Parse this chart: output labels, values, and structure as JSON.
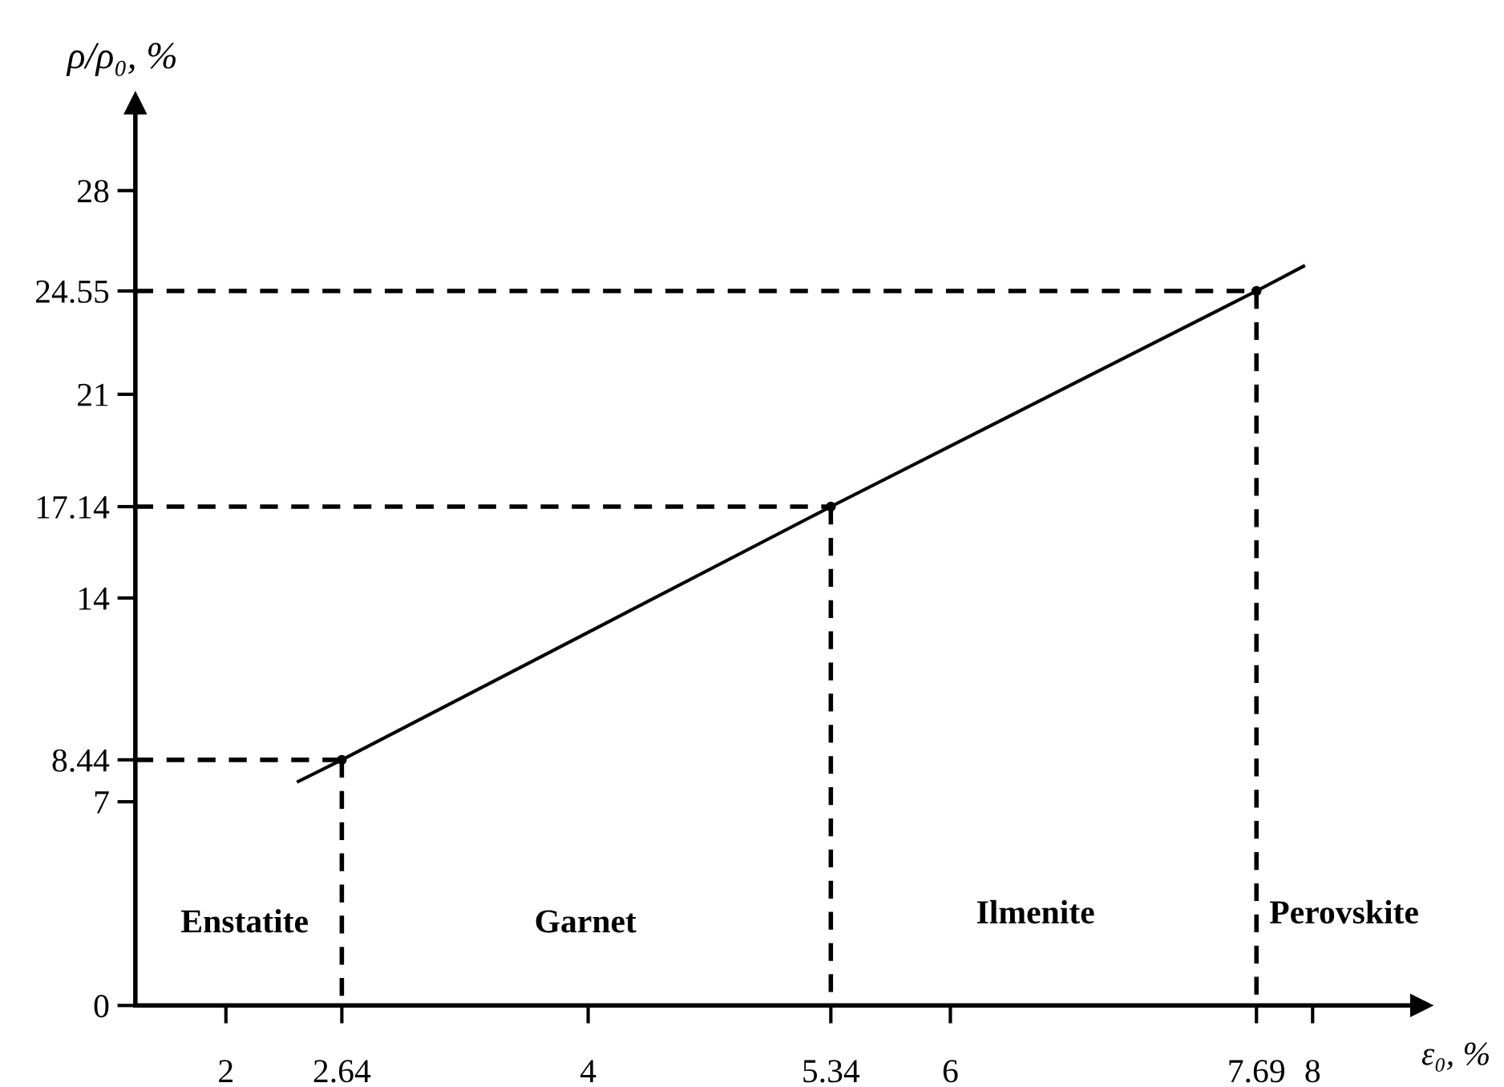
{
  "chart_data": {
    "type": "line",
    "xlabel": "ε₀, %",
    "ylabel": "ρ/ρ₀, %",
    "xlim": [
      1.5,
      8.6
    ],
    "ylim": [
      0,
      31
    ],
    "xticks": [
      2,
      2.64,
      4,
      5.34,
      6,
      7.69,
      8
    ],
    "yticks": [
      0,
      7,
      8.44,
      14,
      17.14,
      21,
      24.55,
      28
    ],
    "grid": false,
    "legend": false,
    "series": [
      {
        "color": "#000000",
        "x": [
          2.4,
          2.64,
          5.34,
          7.69,
          7.95
        ],
        "values": [
          7.7,
          8.44,
          17.14,
          24.55,
          25.4
        ],
        "line_style": "solid",
        "marker": "none"
      },
      {
        "type": "scatter",
        "color": "#000000",
        "x": [
          2.64,
          5.34,
          7.69
        ],
        "values": [
          8.44,
          17.14,
          24.55
        ],
        "marker": "circle"
      },
      {
        "color": "#000000",
        "x": [
          1.5,
          2.64
        ],
        "values": [
          8.44,
          8.44
        ],
        "line_style": "dashed",
        "marker": "none"
      },
      {
        "color": "#000000",
        "x": [
          1.5,
          5.34
        ],
        "values": [
          17.14,
          17.14
        ],
        "line_style": "dashed",
        "marker": "none"
      },
      {
        "color": "#000000",
        "x": [
          1.5,
          7.69
        ],
        "values": [
          24.55,
          24.55
        ],
        "line_style": "dashed",
        "marker": "none"
      },
      {
        "color": "#000000",
        "x": [
          2.64,
          2.64
        ],
        "values": [
          8.44,
          0
        ],
        "line_style": "dashed",
        "marker": "none"
      },
      {
        "color": "#000000",
        "x": [
          5.34,
          5.34
        ],
        "values": [
          17.14,
          0
        ],
        "line_style": "dashed",
        "marker": "none"
      },
      {
        "color": "#000000",
        "x": [
          7.69,
          7.69
        ],
        "values": [
          24.55,
          0
        ],
        "line_style": "dashed",
        "marker": "none"
      }
    ],
    "annotations": [
      "Enstatite",
      "Garnet",
      "Ilmenite",
      "Perovskite"
    ]
  }
}
